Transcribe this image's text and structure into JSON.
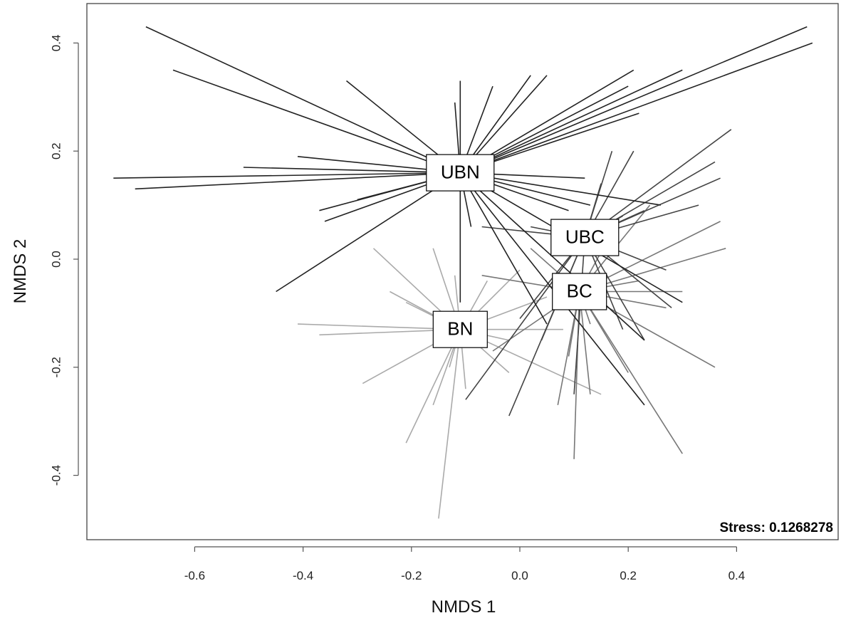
{
  "chart_data": {
    "type": "scatter",
    "subtype": "nmds-spider",
    "xlabel": "NMDS 1",
    "ylabel": "NMDS 2",
    "xlim": [
      -0.8,
      0.6
    ],
    "ylim": [
      -0.52,
      0.47
    ],
    "x_ticks": [
      -0.6,
      -0.4,
      -0.2,
      0.0,
      0.2,
      0.4
    ],
    "x_tick_labels": [
      "-0.6",
      "-0.4",
      "-0.2",
      "0.0",
      "0.2",
      "0.4"
    ],
    "y_ticks": [
      -0.4,
      -0.2,
      0.0,
      0.2,
      0.4
    ],
    "y_tick_labels": [
      "-0.4",
      "-0.2",
      "0.0",
      "0.2",
      "0.4"
    ],
    "grid": false,
    "stress_label": "Stress: 0.1268278",
    "groups": [
      {
        "name": "UBN",
        "color": "#222222",
        "centroid": [
          -0.11,
          0.16
        ],
        "points": [
          [
            -0.69,
            0.43
          ],
          [
            -0.64,
            0.35
          ],
          [
            -0.75,
            0.15
          ],
          [
            -0.71,
            0.13
          ],
          [
            -0.51,
            0.17
          ],
          [
            -0.41,
            0.19
          ],
          [
            -0.45,
            -0.06
          ],
          [
            -0.36,
            0.07
          ],
          [
            -0.32,
            0.33
          ],
          [
            -0.12,
            0.29
          ],
          [
            -0.11,
            0.33
          ],
          [
            -0.37,
            0.09
          ],
          [
            -0.3,
            0.11
          ],
          [
            -0.05,
            0.32
          ],
          [
            0.02,
            0.34
          ],
          [
            0.05,
            0.34
          ],
          [
            0.21,
            0.35
          ],
          [
            0.2,
            0.32
          ],
          [
            0.22,
            0.27
          ],
          [
            0.3,
            0.35
          ],
          [
            0.53,
            0.43
          ],
          [
            0.54,
            0.4
          ],
          [
            0.12,
            0.15
          ],
          [
            0.13,
            0.1
          ],
          [
            0.09,
            0.09
          ],
          [
            0.26,
            0.1
          ],
          [
            -0.09,
            0.06
          ],
          [
            -0.11,
            -0.08
          ],
          [
            0.3,
            -0.08
          ],
          [
            0.23,
            -0.15
          ],
          [
            0.23,
            -0.27
          ],
          [
            0.05,
            -0.12
          ]
        ]
      },
      {
        "name": "UBC",
        "color": "#444444",
        "centroid": [
          0.12,
          0.04
        ],
        "points": [
          [
            0.39,
            0.24
          ],
          [
            0.36,
            0.18
          ],
          [
            0.37,
            0.15
          ],
          [
            0.21,
            0.2
          ],
          [
            0.17,
            0.2
          ],
          [
            0.15,
            0.14
          ],
          [
            0.23,
            0.09
          ],
          [
            0.33,
            0.1
          ],
          [
            0.27,
            -0.02
          ],
          [
            0.28,
            -0.09
          ],
          [
            0.19,
            -0.13
          ],
          [
            0.1,
            -0.25
          ],
          [
            0.04,
            -0.15
          ],
          [
            -0.02,
            -0.29
          ],
          [
            -0.1,
            -0.26
          ],
          [
            0.0,
            -0.11
          ],
          [
            -0.07,
            0.06
          ],
          [
            0.02,
            0.06
          ],
          [
            0.19,
            0.08
          ],
          [
            0.23,
            -0.15
          ]
        ]
      },
      {
        "name": "BC",
        "color": "#777777",
        "centroid": [
          0.11,
          -0.06
        ],
        "points": [
          [
            0.38,
            0.02
          ],
          [
            0.37,
            0.07
          ],
          [
            0.36,
            -0.2
          ],
          [
            0.3,
            -0.06
          ],
          [
            0.3,
            -0.36
          ],
          [
            0.2,
            -0.21
          ],
          [
            0.1,
            -0.37
          ],
          [
            0.07,
            -0.27
          ],
          [
            0.09,
            -0.18
          ],
          [
            0.13,
            -0.25
          ],
          [
            -0.05,
            -0.17
          ],
          [
            -0.07,
            -0.03
          ],
          [
            0.27,
            -0.09
          ],
          [
            0.17,
            0.05
          ],
          [
            0.24,
            0.1
          ],
          [
            0.02,
            0.02
          ],
          [
            0.13,
            -0.12
          ],
          [
            0.22,
            -0.04
          ]
        ]
      },
      {
        "name": "BN",
        "color": "#aaaaaa",
        "centroid": [
          -0.11,
          -0.13
        ],
        "points": [
          [
            -0.27,
            0.02
          ],
          [
            -0.41,
            -0.12
          ],
          [
            -0.37,
            -0.14
          ],
          [
            -0.29,
            -0.23
          ],
          [
            -0.21,
            -0.34
          ],
          [
            -0.15,
            -0.48
          ],
          [
            -0.16,
            -0.27
          ],
          [
            -0.1,
            -0.24
          ],
          [
            -0.02,
            -0.15
          ],
          [
            0.15,
            -0.25
          ],
          [
            -0.24,
            -0.06
          ],
          [
            -0.21,
            -0.08
          ],
          [
            -0.16,
            0.02
          ],
          [
            0.05,
            -0.07
          ],
          [
            -0.13,
            -0.2
          ],
          [
            -0.12,
            -0.03
          ],
          [
            0.0,
            -0.02
          ],
          [
            -0.02,
            -0.21
          ],
          [
            0.08,
            -0.13
          ],
          [
            -0.06,
            -0.04
          ]
        ]
      }
    ]
  }
}
